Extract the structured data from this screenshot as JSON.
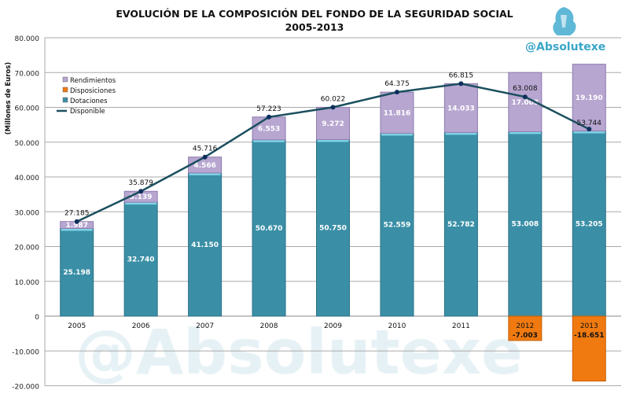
{
  "chart_data": {
    "type": "bar",
    "title": "EVOLUCIÓN DE LA COMPOSICIÓN DEL FONDO DE LA SEGURIDAD SOCIAL",
    "subtitle": "2005-2013",
    "ylabel": "(Millones de Euros)",
    "xlabel": "",
    "ylim": [
      -20000,
      80000
    ],
    "yticks": [
      "-20.000",
      "-10.000",
      "0",
      "10.000",
      "20.000",
      "30.000",
      "40.000",
      "50.000",
      "60.000",
      "70.000",
      "80.000"
    ],
    "grid": true,
    "legend_position": "top-left",
    "categories": [
      "2005",
      "2006",
      "2007",
      "2008",
      "2009",
      "2010",
      "2011",
      "2012",
      "2013"
    ],
    "series": [
      {
        "name": "Dotaciones",
        "kind": "stacked-bar",
        "color": "#3a8fa6",
        "values": [
          25198,
          32740,
          41150,
          50670,
          50750,
          52559,
          52782,
          53008,
          53205
        ],
        "labels": [
          "25.198",
          "32.740",
          "41.150",
          "50.670",
          "50.750",
          "52.559",
          "52.782",
          "53.008",
          "53.205"
        ]
      },
      {
        "name": "Rendimientos",
        "kind": "stacked-bar",
        "color": "#b7a6d0",
        "values": [
          1987,
          3139,
          4566,
          6553,
          9272,
          11816,
          14033,
          17003,
          19190
        ],
        "labels": [
          "1.987",
          "3.139",
          "4.566",
          "6.553",
          "9.272",
          "11.816",
          "14.033",
          "17.003",
          "19.190"
        ]
      },
      {
        "name": "Disposiciones",
        "kind": "stacked-bar",
        "color": "#f07a10",
        "values": [
          0,
          0,
          0,
          0,
          0,
          0,
          0,
          -7003,
          -18651
        ],
        "labels": [
          "",
          "",
          "",
          "",
          "",
          "",
          "",
          "-7.003",
          "-18.651"
        ]
      },
      {
        "name": "Disponible",
        "kind": "line",
        "color": "#1a4f5e",
        "values": [
          27185,
          35879,
          45716,
          57223,
          60022,
          64375,
          66815,
          63008,
          53744
        ],
        "labels": [
          "27.185",
          "35.879",
          "45.716",
          "57.223",
          "60.022",
          "64.375",
          "66.815",
          "63.008",
          "53.744"
        ]
      }
    ]
  },
  "branding": {
    "handle": "@Absolutexe",
    "watermark": "@Absolutexe"
  }
}
